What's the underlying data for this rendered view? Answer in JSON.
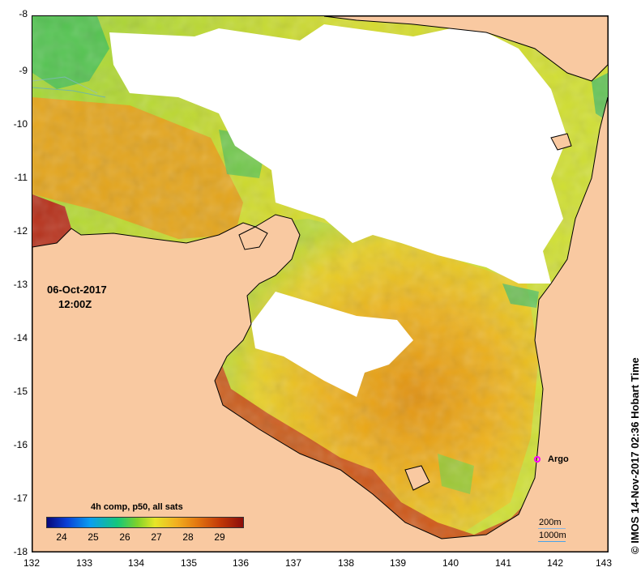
{
  "map": {
    "y_ticks": [
      "-8",
      "-9",
      "-10",
      "-11",
      "-12",
      "-13",
      "-14",
      "-15",
      "-16",
      "-17",
      "-18"
    ],
    "x_ticks": [
      "132",
      "133",
      "134",
      "135",
      "136",
      "137",
      "138",
      "139",
      "140",
      "141",
      "142",
      "143"
    ],
    "date": "06-Oct-2017",
    "time": "12:00Z",
    "legend_title": "4h comp, p50, all sats",
    "colorbar_ticks": [
      "24",
      "25",
      "26",
      "27",
      "28",
      "29"
    ],
    "marker_label": "Argo",
    "isobaths": [
      "200m",
      "1000m"
    ],
    "credit": "IMOS 14-Nov-2017 02:36 Hobart Time",
    "credit_symbol": "©",
    "colors": {
      "land": "#f9c9a1",
      "marker": "#ff00ff",
      "isobath_200": "#88b6e0",
      "isobath_1000": "#4aa3e8"
    }
  }
}
